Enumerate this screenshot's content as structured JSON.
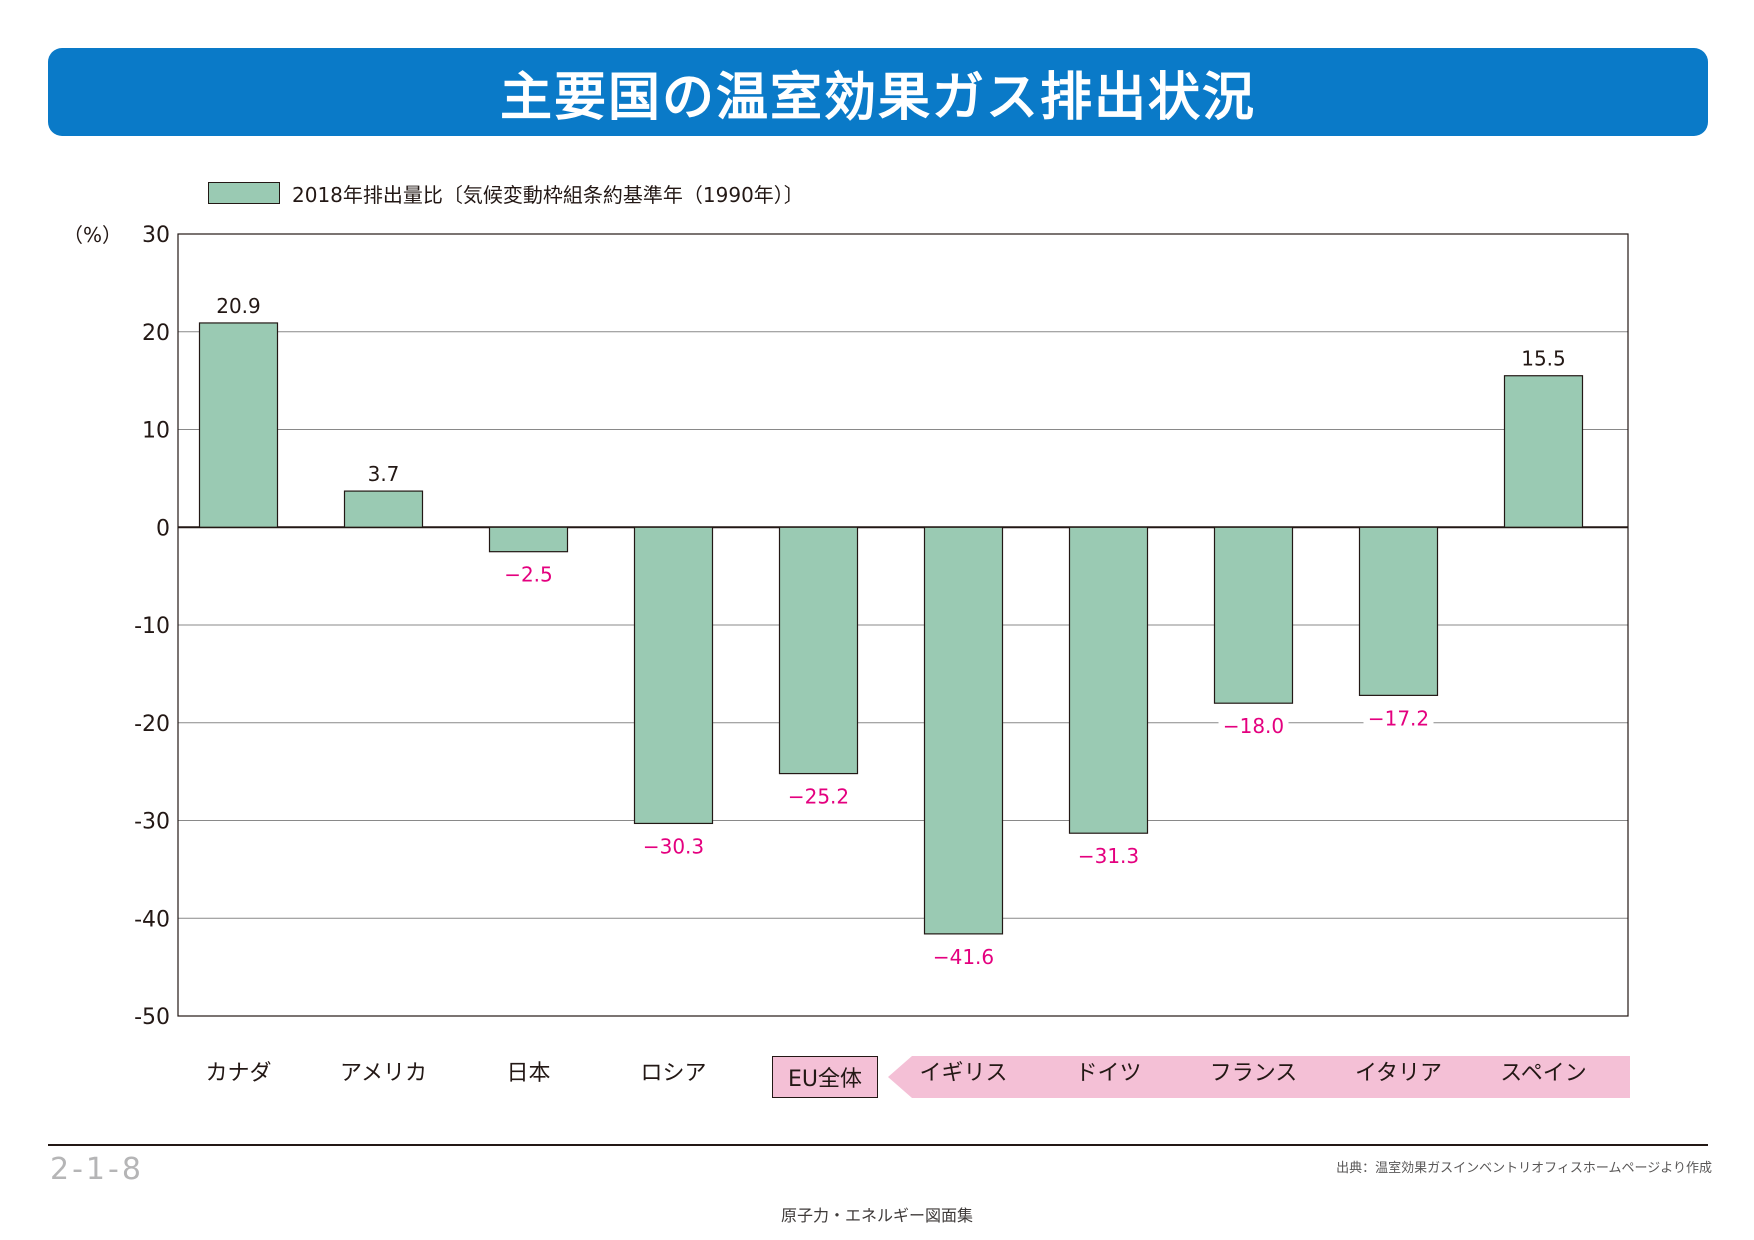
{
  "header": {
    "title": "主要国の温室効果ガス排出状況"
  },
  "legend": {
    "label": "2018年排出量比〔気候変動枠組条約基準年（1990年）〕"
  },
  "chart_data": {
    "type": "bar",
    "title": "主要国の温室効果ガス排出状況",
    "ylabel": "（%）",
    "xlabel": "",
    "ylim": [
      -50,
      30
    ],
    "yticks": [
      30,
      20,
      10,
      0,
      -10,
      -20,
      -30,
      -40,
      -50
    ],
    "ytick_labels": [
      "30",
      "20",
      "10",
      "0",
      "-10",
      "-20",
      "-30",
      "-40",
      "-50"
    ],
    "grid": true,
    "legend_position": "top-left",
    "categories": [
      "カナダ",
      "アメリカ",
      "日本",
      "ロシア",
      "EU全体",
      "イギリス",
      "ドイツ",
      "フランス",
      "イタリア",
      "スペイン"
    ],
    "series": [
      {
        "name": "2018年排出量比〔気候変動枠組条約基準年（1990年）〕",
        "values": [
          20.9,
          3.7,
          -2.5,
          -30.3,
          -25.2,
          -41.6,
          -31.3,
          -18.0,
          -17.2,
          15.5
        ],
        "labels": [
          "20.9",
          "3.7",
          "−2.5",
          "−30.3",
          "−25.2",
          "−41.6",
          "−31.3",
          "−18.0",
          "−17.2",
          "15.5"
        ]
      }
    ],
    "colors": {
      "bar": "#9acab3",
      "positive_label": "#231815",
      "negative_label": "#e4007f",
      "eu_band": "#f4c0d6",
      "grid": "#898989"
    }
  },
  "eu_group": {
    "label": "EU全体"
  },
  "footer": {
    "page_number": "2-1-8",
    "source": "出典：温室効果ガスインベントリオフィスホームページより作成",
    "collection": "原子力・エネルギー図面集"
  }
}
